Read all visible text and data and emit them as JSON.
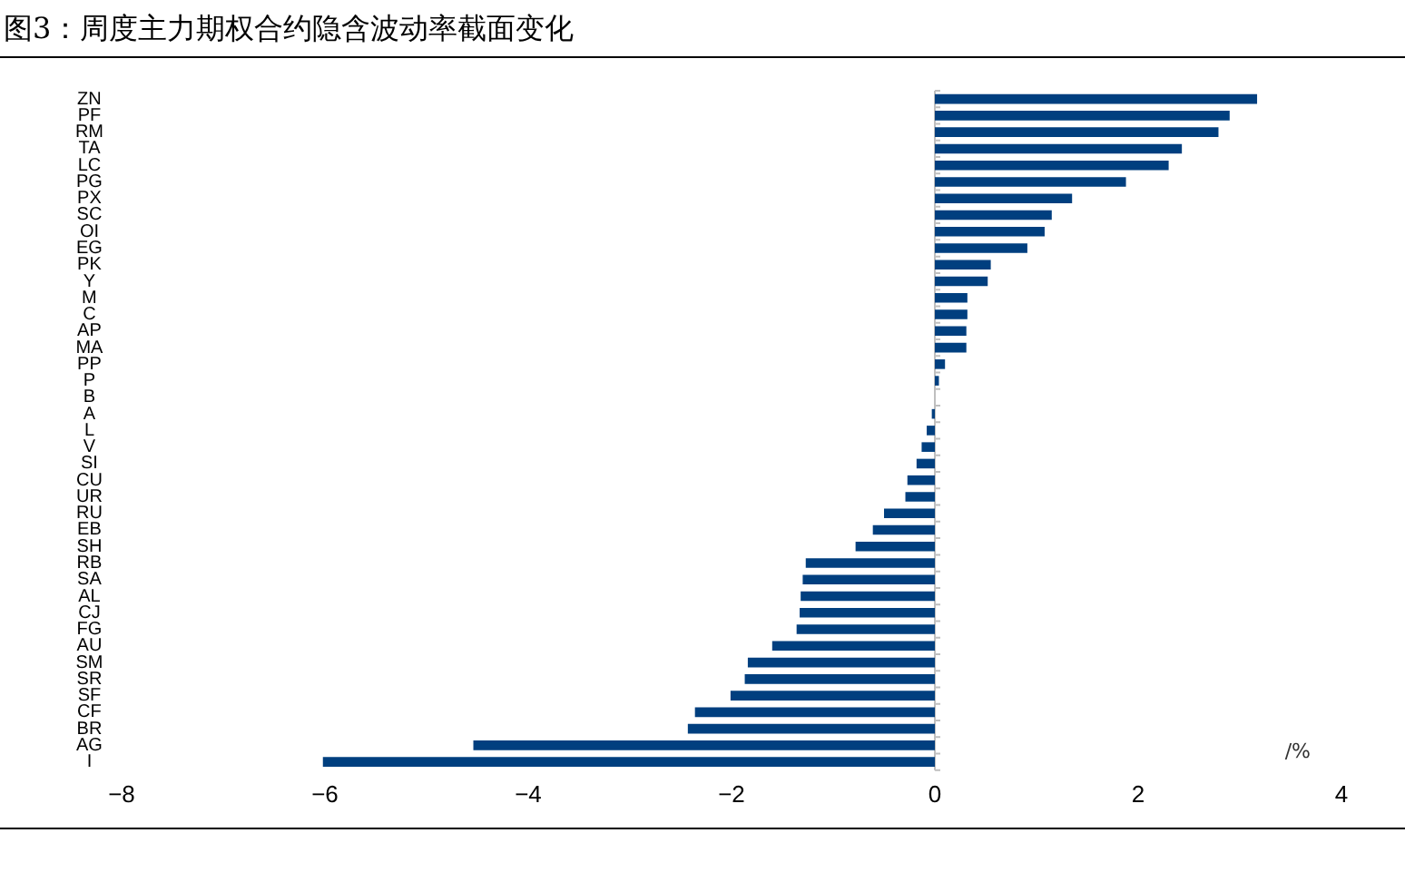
{
  "chart_data": {
    "type": "bar",
    "orientation": "horizontal",
    "title": "图3：周度主力期权合约隐含波动率截面变化",
    "xlabel": "/%",
    "categories": [
      "ZN",
      "PF",
      "RM",
      "TA",
      "LC",
      "PG",
      "PX",
      "SC",
      "OI",
      "EG",
      "PK",
      "Y",
      "M",
      "C",
      "AP",
      "MA",
      "PP",
      "P",
      "B",
      "A",
      "L",
      "V",
      "SI",
      "CU",
      "UR",
      "RU",
      "EB",
      "SH",
      "RB",
      "SA",
      "AL",
      "CJ",
      "FG",
      "AU",
      "SM",
      "SR",
      "SF",
      "CF",
      "BR",
      "AG",
      "I"
    ],
    "values": [
      3.17,
      2.9,
      2.79,
      2.43,
      2.3,
      1.88,
      1.35,
      1.15,
      1.08,
      0.91,
      0.55,
      0.52,
      0.32,
      0.32,
      0.31,
      0.31,
      0.1,
      0.04,
      null,
      -0.03,
      -0.08,
      -0.13,
      -0.18,
      -0.27,
      -0.29,
      -0.5,
      -0.61,
      -0.78,
      -1.27,
      -1.3,
      -1.32,
      -1.33,
      -1.36,
      -1.6,
      -1.84,
      -1.87,
      -2.01,
      -2.36,
      -2.43,
      -4.54,
      -6.02
    ],
    "color": "#003f7f",
    "xlim": [
      -8,
      4
    ],
    "xticks": [
      {
        "value": -8,
        "label": "−8"
      },
      {
        "value": -6,
        "label": "−6"
      },
      {
        "value": -4,
        "label": "−4"
      },
      {
        "value": -2,
        "label": "−2"
      },
      0,
      2,
      4
    ]
  }
}
